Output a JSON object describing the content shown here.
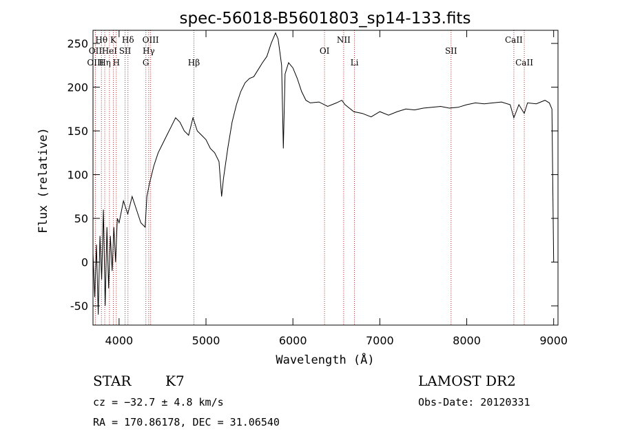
{
  "chart_data": {
    "type": "line",
    "title": "spec-56018-B5601803_sp14-133.fits",
    "xlabel": "Wavelength (Å)",
    "ylabel": "Flux (relative)",
    "xlim": [
      3700,
      9050
    ],
    "ylim": [
      -72,
      265
    ],
    "x_ticks": [
      4000,
      5000,
      6000,
      7000,
      8000,
      9000
    ],
    "y_ticks": [
      -50,
      0,
      50,
      100,
      150,
      200,
      250
    ],
    "grid": false,
    "series": [
      {
        "points": [
          [
            3700,
            10
          ],
          [
            3720,
            -40
          ],
          [
            3740,
            20
          ],
          [
            3760,
            -60
          ],
          [
            3780,
            30
          ],
          [
            3800,
            -20
          ],
          [
            3820,
            60
          ],
          [
            3840,
            -50
          ],
          [
            3860,
            40
          ],
          [
            3880,
            -30
          ],
          [
            3900,
            30
          ],
          [
            3920,
            -10
          ],
          [
            3940,
            40
          ],
          [
            3960,
            0
          ],
          [
            3980,
            50
          ],
          [
            4000,
            45
          ],
          [
            4050,
            70
          ],
          [
            4100,
            55
          ],
          [
            4150,
            75
          ],
          [
            4200,
            60
          ],
          [
            4250,
            45
          ],
          [
            4300,
            40
          ],
          [
            4320,
            75
          ],
          [
            4350,
            90
          ],
          [
            4400,
            110
          ],
          [
            4450,
            125
          ],
          [
            4500,
            135
          ],
          [
            4550,
            145
          ],
          [
            4600,
            155
          ],
          [
            4650,
            165
          ],
          [
            4700,
            160
          ],
          [
            4750,
            150
          ],
          [
            4800,
            145
          ],
          [
            4850,
            165
          ],
          [
            4900,
            150
          ],
          [
            4950,
            145
          ],
          [
            5000,
            140
          ],
          [
            5050,
            130
          ],
          [
            5100,
            125
          ],
          [
            5150,
            115
          ],
          [
            5180,
            75
          ],
          [
            5200,
            95
          ],
          [
            5250,
            130
          ],
          [
            5300,
            160
          ],
          [
            5350,
            180
          ],
          [
            5400,
            195
          ],
          [
            5450,
            205
          ],
          [
            5500,
            210
          ],
          [
            5550,
            212
          ],
          [
            5600,
            220
          ],
          [
            5650,
            228
          ],
          [
            5700,
            235
          ],
          [
            5750,
            250
          ],
          [
            5800,
            262
          ],
          [
            5830,
            255
          ],
          [
            5850,
            240
          ],
          [
            5870,
            225
          ],
          [
            5890,
            130
          ],
          [
            5910,
            215
          ],
          [
            5950,
            228
          ],
          [
            6000,
            222
          ],
          [
            6050,
            210
          ],
          [
            6100,
            195
          ],
          [
            6150,
            185
          ],
          [
            6200,
            182
          ],
          [
            6300,
            183
          ],
          [
            6400,
            178
          ],
          [
            6500,
            182
          ],
          [
            6563,
            185
          ],
          [
            6600,
            180
          ],
          [
            6700,
            172
          ],
          [
            6800,
            170
          ],
          [
            6900,
            166
          ],
          [
            7000,
            172
          ],
          [
            7100,
            168
          ],
          [
            7200,
            172
          ],
          [
            7300,
            175
          ],
          [
            7400,
            174
          ],
          [
            7500,
            176
          ],
          [
            7600,
            177
          ],
          [
            7700,
            178
          ],
          [
            7800,
            176
          ],
          [
            7900,
            177
          ],
          [
            8000,
            180
          ],
          [
            8100,
            182
          ],
          [
            8200,
            181
          ],
          [
            8300,
            182
          ],
          [
            8400,
            183
          ],
          [
            8500,
            180
          ],
          [
            8542,
            165
          ],
          [
            8600,
            180
          ],
          [
            8662,
            170
          ],
          [
            8700,
            182
          ],
          [
            8800,
            181
          ],
          [
            8900,
            185
          ],
          [
            8950,
            182
          ],
          [
            8980,
            175
          ],
          [
            9000,
            0
          ]
        ]
      }
    ],
    "spectral_lines": [
      {
        "label": "Hθ",
        "wavelength": 3797,
        "row": 1
      },
      {
        "label": "K",
        "wavelength": 3934,
        "row": 1
      },
      {
        "label": "Hδ",
        "wavelength": 4102,
        "row": 1
      },
      {
        "label": "OIII",
        "wavelength": 4363,
        "row": 1
      },
      {
        "label": "NII",
        "wavelength": 6584,
        "row": 1
      },
      {
        "label": "CaII",
        "wavelength": 8542,
        "row": 1
      },
      {
        "label": "OII",
        "wavelength": 3727,
        "row": 2
      },
      {
        "label": "HeI",
        "wavelength": 3889,
        "row": 2
      },
      {
        "label": "SII",
        "wavelength": 4069,
        "row": 2
      },
      {
        "label": "Hγ",
        "wavelength": 4341,
        "row": 2
      },
      {
        "label": "OI",
        "wavelength": 6364,
        "row": 2
      },
      {
        "label": "SII",
        "wavelength": 7820,
        "row": 2
      },
      {
        "label": "OIII",
        "wavelength": 3727,
        "row": 3
      },
      {
        "label": "Hη",
        "wavelength": 3835,
        "row": 3
      },
      {
        "label": "H",
        "wavelength": 3968,
        "row": 3
      },
      {
        "label": "G",
        "wavelength": 4308,
        "row": 3
      },
      {
        "label": "Hβ",
        "wavelength": 4861,
        "row": 3
      },
      {
        "label": "Li",
        "wavelength": 6708,
        "row": 3
      },
      {
        "label": "CaII",
        "wavelength": 8662,
        "row": 3
      }
    ]
  },
  "info": {
    "object_class": "STAR",
    "subclass": "K7",
    "redshift": "cz = −32.7 ± 4.8 km/s",
    "coords": "RA = 170.86178, DEC =  31.06540",
    "survey": "LAMOST DR2",
    "obs_date": "Obs-Date: 20120331"
  },
  "colors": {
    "line": "#000000",
    "marker_lines": "#b03030"
  }
}
